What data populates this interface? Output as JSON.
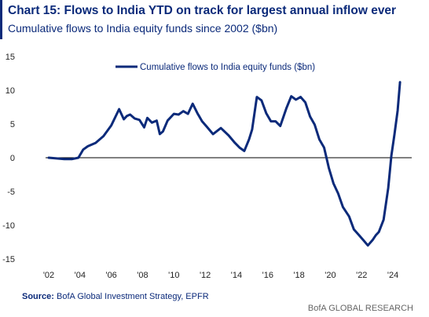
{
  "header": {
    "title": "Chart 15: Flows to India YTD on track for largest annual inflow ever",
    "subtitle": "Cumulative flows to India equity funds since 2002 ($bn)"
  },
  "footer": {
    "source_label": "Source:",
    "source_text": "BofA Global Investment Strategy, EPFR",
    "credit": "BofA GLOBAL RESEARCH"
  },
  "chart_data": {
    "type": "line",
    "title": "",
    "xlabel": "",
    "ylabel": "",
    "xlim": [
      2002,
      2025.2
    ],
    "ylim": [
      -15,
      15
    ],
    "grid": false,
    "legend_position": "top-left",
    "line_color": "#0b2a7a",
    "yticks": [
      15,
      10,
      5,
      0,
      -5,
      -10,
      -15
    ],
    "xticks": [
      {
        "x": 2002,
        "label": "'02"
      },
      {
        "x": 2004,
        "label": "'04"
      },
      {
        "x": 2006,
        "label": "'06"
      },
      {
        "x": 2008,
        "label": "'08"
      },
      {
        "x": 2010,
        "label": "'10"
      },
      {
        "x": 2012,
        "label": "'12"
      },
      {
        "x": 2014,
        "label": "'14"
      },
      {
        "x": 2016,
        "label": "'16"
      },
      {
        "x": 2018,
        "label": "'18"
      },
      {
        "x": 2020,
        "label": "'20"
      },
      {
        "x": 2022,
        "label": "'22"
      },
      {
        "x": 2024,
        "label": "'24"
      }
    ],
    "series": [
      {
        "name": "Cumulative flows to India equity funds ($bn)",
        "x": [
          2002,
          2002.5,
          2003,
          2003.5,
          2003.9,
          2004.2,
          2004.5,
          2005,
          2005.5,
          2006,
          2006.5,
          2006.8,
          2007,
          2007.2,
          2007.5,
          2007.8,
          2008.1,
          2008.3,
          2008.6,
          2008.9,
          2009.1,
          2009.3,
          2009.6,
          2010,
          2010.3,
          2010.6,
          2010.9,
          2011.2,
          2011.5,
          2011.8,
          2012.1,
          2012.5,
          2013,
          2013.5,
          2013.9,
          2014.2,
          2014.5,
          2014.8,
          2015,
          2015.3,
          2015.6,
          2015.9,
          2016.2,
          2016.5,
          2016.8,
          2017.2,
          2017.5,
          2017.8,
          2018.1,
          2018.4,
          2018.7,
          2019,
          2019.3,
          2019.6,
          2019.9,
          2020.2,
          2020.5,
          2020.8,
          2021.2,
          2021.5,
          2021.8,
          2022.1,
          2022.4,
          2022.7,
          2022.9,
          2023.1,
          2023.4,
          2023.7,
          2023.9,
          2024.1,
          2024.3,
          2024.45
        ],
        "y": [
          0,
          -0.1,
          -0.2,
          -0.2,
          0,
          1.2,
          1.7,
          2.2,
          3.2,
          4.8,
          7.2,
          5.7,
          6.2,
          6.4,
          5.8,
          5.6,
          4.5,
          5.9,
          5.2,
          5.5,
          3.5,
          3.9,
          5.5,
          6.5,
          6.4,
          6.9,
          6.5,
          8.0,
          6.6,
          5.4,
          4.6,
          3.5,
          4.4,
          3.3,
          2.2,
          1.5,
          1.0,
          2.7,
          4.2,
          9.0,
          8.5,
          6.6,
          5.4,
          5.4,
          4.7,
          7.4,
          9.1,
          8.6,
          9.0,
          8.2,
          6.1,
          4.9,
          2.7,
          1.5,
          -1.5,
          -3.8,
          -5.3,
          -7.3,
          -8.7,
          -10.6,
          -11.4,
          -12.2,
          -13.0,
          -12.2,
          -11.5,
          -11.0,
          -9.2,
          -4.5,
          0.3,
          3.5,
          7.0,
          11.2
        ]
      }
    ]
  }
}
